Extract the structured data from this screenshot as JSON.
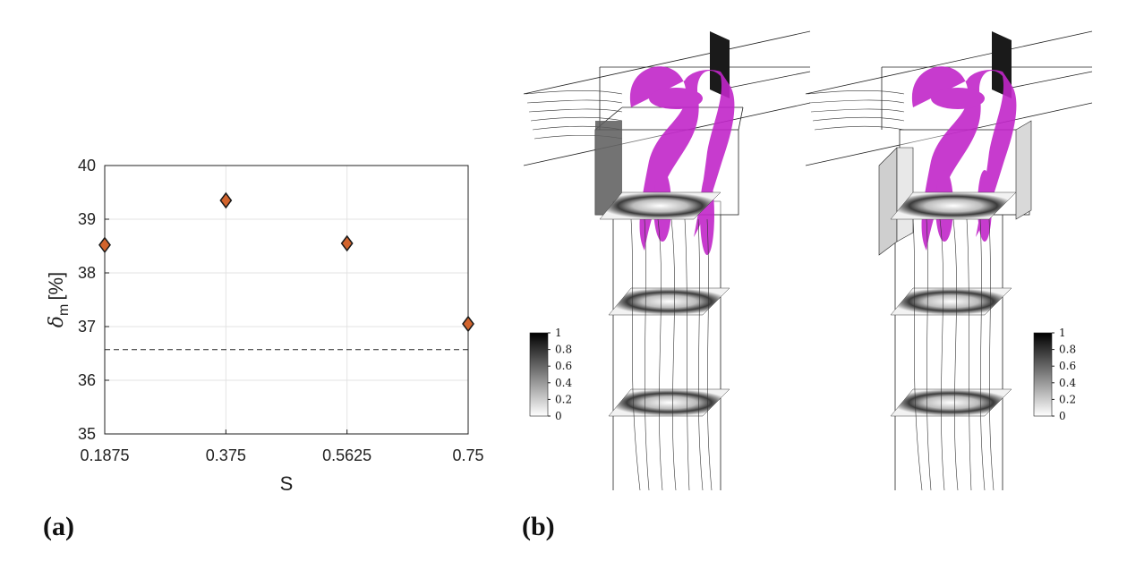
{
  "panel_labels": {
    "a": "(a)",
    "b": "(b)"
  },
  "chart_data": {
    "type": "scatter",
    "x_tick_labels": [
      "0.1875",
      "0.375",
      "0.5625",
      "0.75"
    ],
    "y_tick_labels": [
      "35",
      "36",
      "37",
      "38",
      "39",
      "40"
    ],
    "x": [
      0.1875,
      0.375,
      0.5625,
      0.75
    ],
    "series": [
      {
        "values": [
          38.52,
          39.35,
          38.55,
          37.05
        ]
      }
    ],
    "reference_line": {
      "y": 36.57,
      "style": "dashed"
    },
    "xlabel": "S",
    "ylabel_symbol": "δ",
    "ylabel_subscript": "m",
    "ylabel_unit": "[%]",
    "xlim": [
      0.1875,
      0.75
    ],
    "ylim": [
      35,
      40
    ],
    "grid": true,
    "marker": "diamond",
    "marker_color": "#d2642d"
  },
  "colorbars": [
    {
      "tick_labels": [
        "1",
        "0.8",
        "0.6",
        "0.4",
        "0.2",
        "0"
      ]
    },
    {
      "tick_labels": [
        "1",
        "0.8",
        "0.6",
        "0.4",
        "0.2",
        "0"
      ]
    }
  ],
  "colors": {
    "vortex": "#c126c9",
    "dark": "#1a1a1a"
  }
}
